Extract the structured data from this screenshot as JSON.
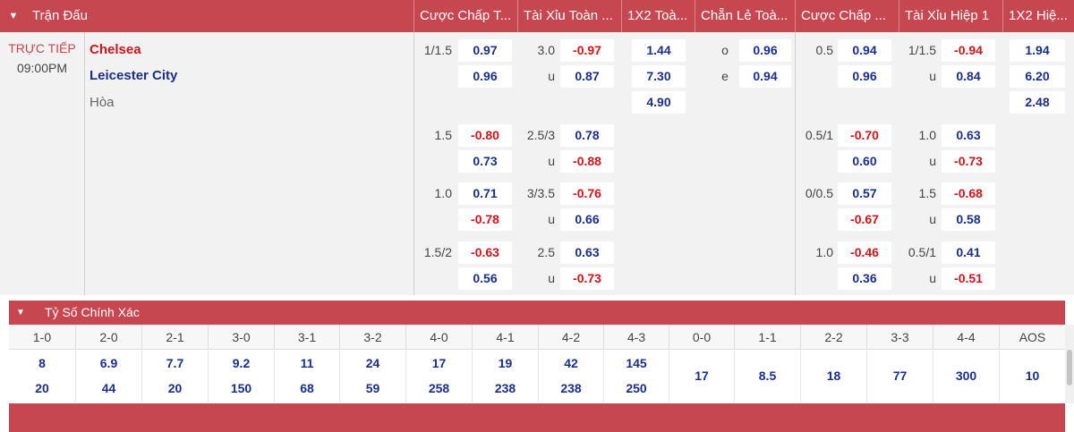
{
  "header": {
    "toggle_icon": "chevron-down-icon",
    "title": "Trận Đấu",
    "columns": [
      "Cược Chấp T...",
      "Tài Xỉu Toàn ...",
      "1X2 Toà...",
      "Chẵn Lẻ Toà...",
      "Cược Chấp ...",
      "Tài Xỉu Hiệp 1",
      "1X2 Hiệ..."
    ]
  },
  "match": {
    "status": "TRỰC TIẾP",
    "time": "09:00PM",
    "home": "Chelsea",
    "away": "Leicester City",
    "draw": "Hòa"
  },
  "colors": {
    "accent": "#c6474f",
    "home": "#d3121a",
    "away": "#1a2e8c",
    "positive": "#1a2e8c",
    "negative": "#d3121a"
  },
  "odds": [
    {
      "hdp_ft": {
        "line": "1/1.5",
        "home": "0.97",
        "away": "0.96"
      },
      "ou_ft": {
        "line": "3.0",
        "over": "-0.97",
        "under_label": "u",
        "under": "0.87"
      },
      "x12_ft": {
        "home": "1.44",
        "away": "7.30",
        "draw": "4.90"
      },
      "oe_ft": {
        "odd_label": "o",
        "odd": "0.96",
        "even_label": "e",
        "even": "0.94"
      },
      "hdp_h1": {
        "line": "0.5",
        "home": "0.94",
        "away": "0.96"
      },
      "ou_h1": {
        "line": "1/1.5",
        "over": "-0.94",
        "under_label": "u",
        "under": "0.84"
      },
      "x12_h1": {
        "home": "1.94",
        "away": "6.20",
        "draw": "2.48"
      }
    },
    {
      "hdp_ft": {
        "line": "1.5",
        "home": "-0.80",
        "away": "0.73"
      },
      "ou_ft": {
        "line": "2.5/3",
        "over": "0.78",
        "under_label": "u",
        "under": "-0.88"
      },
      "hdp_h1": {
        "line": "0.5/1",
        "home": "-0.70",
        "away": "0.60"
      },
      "ou_h1": {
        "line": "1.0",
        "over": "0.63",
        "under_label": "u",
        "under": "-0.73"
      }
    },
    {
      "hdp_ft": {
        "line": "1.0",
        "home": "0.71",
        "away": "-0.78"
      },
      "ou_ft": {
        "line": "3/3.5",
        "over": "-0.76",
        "under_label": "u",
        "under": "0.66"
      },
      "hdp_h1": {
        "line": "0/0.5",
        "home": "0.57",
        "away": "-0.67"
      },
      "ou_h1": {
        "line": "1.5",
        "over": "-0.68",
        "under_label": "u",
        "under": "0.58"
      }
    },
    {
      "hdp_ft": {
        "line": "1.5/2",
        "home": "-0.63",
        "away": "0.56"
      },
      "ou_ft": {
        "line": "2.5",
        "over": "0.63",
        "under_label": "u",
        "under": "-0.73"
      },
      "hdp_h1": {
        "line": "1.0",
        "home": "-0.46",
        "away": "0.36"
      },
      "ou_h1": {
        "line": "0.5/1",
        "over": "0.41",
        "under_label": "u",
        "under": "-0.51"
      }
    }
  ],
  "correct_score": {
    "toggle_icon": "chevron-down-icon",
    "title": "Tỷ Số Chính Xác",
    "columns": [
      {
        "score": "1-0",
        "home": "8",
        "away": "20"
      },
      {
        "score": "2-0",
        "home": "6.9",
        "away": "44"
      },
      {
        "score": "2-1",
        "home": "7.7",
        "away": "20"
      },
      {
        "score": "3-0",
        "home": "9.2",
        "away": "150"
      },
      {
        "score": "3-1",
        "home": "11",
        "away": "68"
      },
      {
        "score": "3-2",
        "home": "24",
        "away": "59"
      },
      {
        "score": "4-0",
        "home": "17",
        "away": "258"
      },
      {
        "score": "4-1",
        "home": "19",
        "away": "238"
      },
      {
        "score": "4-2",
        "home": "42",
        "away": "238"
      },
      {
        "score": "4-3",
        "home": "145",
        "away": "250"
      },
      {
        "score": "0-0",
        "single": "17"
      },
      {
        "score": "1-1",
        "single": "8.5"
      },
      {
        "score": "2-2",
        "single": "18"
      },
      {
        "score": "3-3",
        "single": "77"
      },
      {
        "score": "4-4",
        "single": "300"
      },
      {
        "score": "AOS",
        "single": "10"
      }
    ]
  }
}
